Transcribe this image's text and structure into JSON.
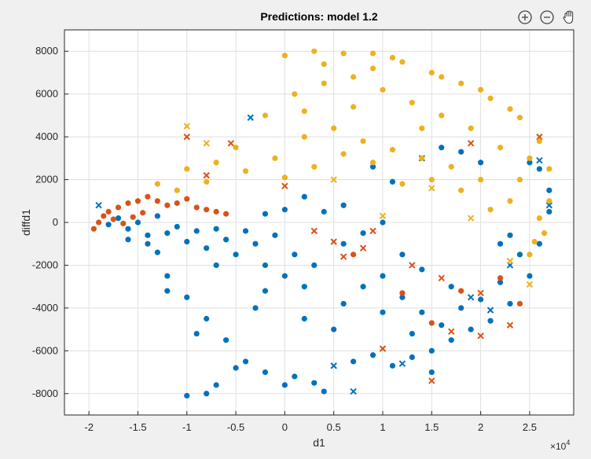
{
  "toolbar": {
    "zoom_in": "zoom-in-icon",
    "zoom_out": "zoom-out-icon",
    "pan": "pan-hand-icon"
  },
  "colors": {
    "figure_bg": "#f0f0f0",
    "axes_bg": "#ffffff",
    "grid": "#dfdfdf",
    "series_blue": "#0072bd",
    "series_orange": "#d95319",
    "series_yellow": "#edb120"
  },
  "chart_data": {
    "type": "scatter",
    "title": "Predictions: model 1.2",
    "xlabel": "d1",
    "ylabel": "diffd1",
    "x_exponent_label": "×10",
    "x_exponent_power": "4",
    "xlim": [
      -2.25,
      2.95
    ],
    "ylim": [
      -9000,
      9000
    ],
    "xticks": [
      -2,
      -1.5,
      -1,
      -0.5,
      0,
      0.5,
      1,
      1.5,
      2,
      2.5
    ],
    "xtick_labels": [
      "-2",
      "-1.5",
      "-1",
      "-0.5",
      "0",
      "0.5",
      "1",
      "1.5",
      "2",
      "2.5"
    ],
    "yticks": [
      -8000,
      -6000,
      -4000,
      -2000,
      0,
      2000,
      4000,
      6000,
      8000
    ],
    "ytick_labels": [
      "-8000",
      "-6000",
      "-4000",
      "-2000",
      "0",
      "2000",
      "4000",
      "6000",
      "8000"
    ],
    "grid": true,
    "legend": "none",
    "marker_kinds": [
      "dot = prediction",
      "x = misclassified"
    ],
    "series": [
      {
        "color": "#0072bd",
        "markers_dot": [
          [
            -1.8,
            -100
          ],
          [
            -1.7,
            200
          ],
          [
            -1.6,
            -300
          ],
          [
            -1.5,
            0
          ],
          [
            -1.4,
            -600
          ],
          [
            -1.3,
            300
          ],
          [
            -1.2,
            -500
          ],
          [
            -1.1,
            -200
          ],
          [
            -1.0,
            -900
          ],
          [
            -0.9,
            -400
          ],
          [
            -0.8,
            -1200
          ],
          [
            -0.7,
            -300
          ],
          [
            -0.6,
            -800
          ],
          [
            -0.5,
            -1500
          ],
          [
            -0.4,
            -400
          ],
          [
            -0.3,
            -1000
          ],
          [
            -0.2,
            -2000
          ],
          [
            -0.1,
            -600
          ],
          [
            0.0,
            -2500
          ],
          [
            0.1,
            -1500
          ],
          [
            0.2,
            -3000
          ],
          [
            0.3,
            -2000
          ],
          [
            -1.2,
            -2500
          ],
          [
            -1.0,
            -3500
          ],
          [
            -0.8,
            -4500
          ],
          [
            -0.6,
            -5500
          ],
          [
            -0.4,
            -6500
          ],
          [
            -0.2,
            -7000
          ],
          [
            0.0,
            -7600
          ],
          [
            -1.0,
            -8100
          ],
          [
            -0.8,
            -8000
          ],
          [
            -1.2,
            -3200
          ],
          [
            -0.9,
            -5200
          ],
          [
            -0.5,
            -6800
          ],
          [
            0.3,
            -7500
          ],
          [
            0.5,
            -5000
          ],
          [
            0.7,
            -6500
          ],
          [
            0.9,
            -6200
          ],
          [
            1.1,
            -6700
          ],
          [
            1.3,
            -6300
          ],
          [
            1.5,
            -6000
          ],
          [
            1.7,
            -5500
          ],
          [
            1.9,
            -5000
          ],
          [
            2.1,
            -4600
          ],
          [
            2.3,
            -3800
          ],
          [
            2.5,
            -2500
          ],
          [
            2.6,
            -1000
          ],
          [
            2.7,
            500
          ],
          [
            2.7,
            1500
          ],
          [
            2.6,
            2500
          ],
          [
            2.5,
            2800
          ],
          [
            0.8,
            -3000
          ],
          [
            1.0,
            -2500
          ],
          [
            1.2,
            -3500
          ],
          [
            1.4,
            -4200
          ],
          [
            1.6,
            -4800
          ],
          [
            1.8,
            -4000
          ],
          [
            2.0,
            -3600
          ],
          [
            2.2,
            -2800
          ],
          [
            0.6,
            -1000
          ],
          [
            0.8,
            -500
          ],
          [
            1.0,
            0
          ],
          [
            1.2,
            -1500
          ],
          [
            1.4,
            -2200
          ],
          [
            0.4,
            500
          ],
          [
            0.6,
            800
          ],
          [
            0.2,
            1200
          ],
          [
            0.0,
            600
          ],
          [
            -0.2,
            400
          ],
          [
            0.9,
            2600
          ],
          [
            1.1,
            1900
          ],
          [
            1.6,
            3500
          ],
          [
            1.8,
            3300
          ],
          [
            2.0,
            2800
          ],
          [
            1.5,
            -7000
          ],
          [
            0.4,
            -7900
          ],
          [
            0.1,
            -7200
          ],
          [
            -0.7,
            -7600
          ],
          [
            -0.3,
            -4000
          ],
          [
            0.2,
            -4500
          ],
          [
            0.6,
            -3800
          ],
          [
            1.0,
            -4200
          ],
          [
            1.3,
            -5200
          ],
          [
            1.7,
            -3000
          ],
          [
            2.2,
            -1000
          ],
          [
            2.4,
            -1500
          ],
          [
            2.3,
            -600
          ],
          [
            -1.4,
            -1000
          ],
          [
            -1.6,
            -800
          ],
          [
            -1.3,
            -1400
          ],
          [
            -0.7,
            -2000
          ],
          [
            -0.2,
            -3200
          ]
        ],
        "markers_x": [
          [
            -1.9,
            800
          ],
          [
            -0.35,
            4900
          ],
          [
            0.7,
            -7900
          ],
          [
            1.4,
            3000
          ],
          [
            1.9,
            -3500
          ],
          [
            2.3,
            -2000
          ],
          [
            2.6,
            2900
          ],
          [
            2.7,
            800
          ],
          [
            0.5,
            -6700
          ],
          [
            1.2,
            -6600
          ],
          [
            2.1,
            -4100
          ]
        ]
      },
      {
        "color": "#d95319",
        "markers_dot": [
          [
            -1.95,
            -300
          ],
          [
            -1.9,
            0
          ],
          [
            -1.85,
            300
          ],
          [
            -1.8,
            500
          ],
          [
            -1.7,
            700
          ],
          [
            -1.6,
            900
          ],
          [
            -1.5,
            1000
          ],
          [
            -1.4,
            1200
          ],
          [
            -1.3,
            1000
          ],
          [
            -1.2,
            800
          ],
          [
            -1.1,
            900
          ],
          [
            -1.0,
            1100
          ],
          [
            -0.9,
            700
          ],
          [
            -0.8,
            600
          ],
          [
            -0.7,
            500
          ],
          [
            -0.6,
            400
          ],
          [
            -1.75,
            150
          ],
          [
            -1.65,
            -50
          ],
          [
            -1.55,
            250
          ],
          [
            -1.45,
            450
          ],
          [
            0.7,
            -1500
          ],
          [
            1.2,
            -3300
          ],
          [
            1.8,
            -3200
          ],
          [
            2.2,
            -2600
          ],
          [
            2.4,
            -3800
          ],
          [
            1.5,
            -4700
          ]
        ],
        "markers_x": [
          [
            -1.0,
            4000
          ],
          [
            -0.8,
            2200
          ],
          [
            -0.55,
            3700
          ],
          [
            0.0,
            1700
          ],
          [
            0.3,
            -400
          ],
          [
            0.5,
            -900
          ],
          [
            0.8,
            -1200
          ],
          [
            1.3,
            -2000
          ],
          [
            1.6,
            -2600
          ],
          [
            2.0,
            -3300
          ],
          [
            2.3,
            -4800
          ],
          [
            2.6,
            4000
          ],
          [
            1.9,
            3700
          ],
          [
            0.6,
            -1600
          ],
          [
            1.7,
            -5100
          ],
          [
            1.5,
            -7400
          ],
          [
            2.0,
            -5300
          ],
          [
            1.0,
            -5900
          ],
          [
            0.9,
            -400
          ]
        ]
      },
      {
        "color": "#edb120",
        "markers_dot": [
          [
            0.0,
            7800
          ],
          [
            0.3,
            8000
          ],
          [
            0.6,
            7900
          ],
          [
            0.9,
            7900
          ],
          [
            1.2,
            7500
          ],
          [
            1.5,
            7000
          ],
          [
            1.8,
            6500
          ],
          [
            2.1,
            5800
          ],
          [
            2.4,
            4900
          ],
          [
            2.6,
            3800
          ],
          [
            2.7,
            2500
          ],
          [
            2.7,
            1000
          ],
          [
            2.65,
            -500
          ],
          [
            2.5,
            -1500
          ],
          [
            -0.5,
            3500
          ],
          [
            -0.2,
            5000
          ],
          [
            0.1,
            6000
          ],
          [
            0.4,
            6500
          ],
          [
            0.7,
            6800
          ],
          [
            1.0,
            6200
          ],
          [
            1.3,
            5600
          ],
          [
            1.6,
            5000
          ],
          [
            1.9,
            4400
          ],
          [
            2.2,
            3500
          ],
          [
            2.4,
            2000
          ],
          [
            -1.0,
            2500
          ],
          [
            -0.7,
            2800
          ],
          [
            -0.4,
            2400
          ],
          [
            -0.1,
            3000
          ],
          [
            0.2,
            4000
          ],
          [
            0.5,
            4400
          ],
          [
            0.8,
            3800
          ],
          [
            1.1,
            3400
          ],
          [
            1.4,
            3000
          ],
          [
            1.7,
            2600
          ],
          [
            2.0,
            2000
          ],
          [
            2.3,
            1000
          ],
          [
            0.0,
            2100
          ],
          [
            0.3,
            2600
          ],
          [
            0.6,
            3200
          ],
          [
            0.9,
            2800
          ],
          [
            1.2,
            1800
          ],
          [
            1.5,
            2000
          ],
          [
            1.8,
            1500
          ],
          [
            2.1,
            600
          ],
          [
            -1.3,
            1800
          ],
          [
            -1.1,
            1500
          ],
          [
            -0.8,
            1900
          ],
          [
            0.4,
            7400
          ],
          [
            0.9,
            7200
          ],
          [
            1.6,
            6800
          ],
          [
            2.0,
            6200
          ],
          [
            2.3,
            5300
          ],
          [
            1.1,
            7700
          ],
          [
            0.2,
            5200
          ],
          [
            0.7,
            5400
          ],
          [
            1.4,
            4400
          ],
          [
            2.5,
            3000
          ],
          [
            2.6,
            200
          ],
          [
            2.55,
            -900
          ]
        ],
        "markers_x": [
          [
            -1.0,
            4500
          ],
          [
            -0.8,
            3700
          ],
          [
            0.5,
            2000
          ],
          [
            1.0,
            300
          ],
          [
            1.5,
            1600
          ],
          [
            2.3,
            -1800
          ],
          [
            2.5,
            -2900
          ],
          [
            1.9,
            200
          ]
        ]
      }
    ]
  }
}
